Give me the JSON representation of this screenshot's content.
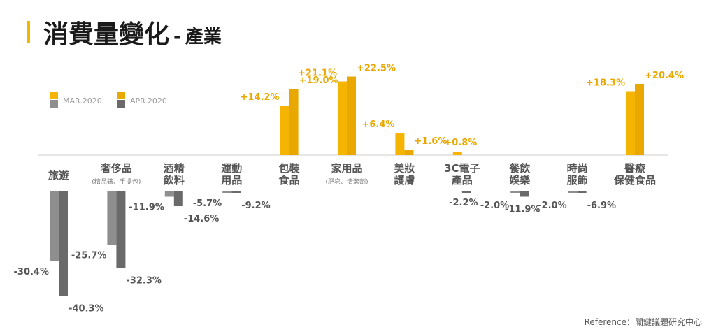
{
  "title": {
    "main": "消費量變化",
    "separator": "-",
    "subtitle": "產業"
  },
  "reference": "Reference：關鍵議題研究中心",
  "colors": {
    "mar_positive": "#f4b400",
    "apr_positive": "#e9a800",
    "mar_negative": "#8e8e8e",
    "apr_negative": "#6a6a6a",
    "axis": "#cccccc"
  },
  "legend": {
    "mar": "MAR.2020",
    "apr": "APR.2020"
  },
  "chart_data": {
    "type": "bar",
    "categories": [
      {
        "lines": [
          "旅遊"
        ],
        "sub": ""
      },
      {
        "lines": [
          "奢侈品"
        ],
        "sub": "(精品錶、手提包)"
      },
      {
        "lines": [
          "酒精",
          "飲料"
        ],
        "sub": ""
      },
      {
        "lines": [
          "運動",
          "用品"
        ],
        "sub": ""
      },
      {
        "lines": [
          "包裝",
          "食品"
        ],
        "sub": ""
      },
      {
        "lines": [
          "家用品"
        ],
        "sub": "(肥皂、清潔劑)"
      },
      {
        "lines": [
          "美妝",
          "護膚"
        ],
        "sub": ""
      },
      {
        "lines": [
          "3C電子",
          "產品"
        ],
        "sub": ""
      },
      {
        "lines": [
          "餐飲",
          "娛樂"
        ],
        "sub": ""
      },
      {
        "lines": [
          "時尚",
          "服飾"
        ],
        "sub": ""
      },
      {
        "lines": [
          "醫療",
          "保健食品"
        ],
        "sub": ""
      }
    ],
    "series": [
      {
        "name": "MAR.2020",
        "values": [
          -30.4,
          -25.7,
          -11.9,
          -5.7,
          14.2,
          21.1,
          6.4,
          0.8,
          -2.0,
          -2.0,
          18.3
        ],
        "labels": [
          "-30.4%",
          "-25.7%",
          "-11.9%",
          "-5.7%",
          "+14.2%",
          "+21.1%",
          "+6.4%",
          "+0.8%",
          "-2.0%",
          "-2.0%",
          "+18.3%"
        ]
      },
      {
        "name": "APR.2020",
        "values": [
          -40.3,
          -32.3,
          -14.6,
          -9.2,
          19.0,
          22.5,
          1.6,
          -2.2,
          -11.9,
          -6.9,
          20.4
        ],
        "labels": [
          "-40.3%",
          "-32.3%",
          "-14.6%",
          "-9.2%",
          "+19.0%",
          "+22.5%",
          "+1.6%",
          "-2.2%",
          "-11.9%",
          "-6.9%",
          "+20.4%"
        ]
      }
    ],
    "grid": false,
    "legend_position": "top-left"
  }
}
